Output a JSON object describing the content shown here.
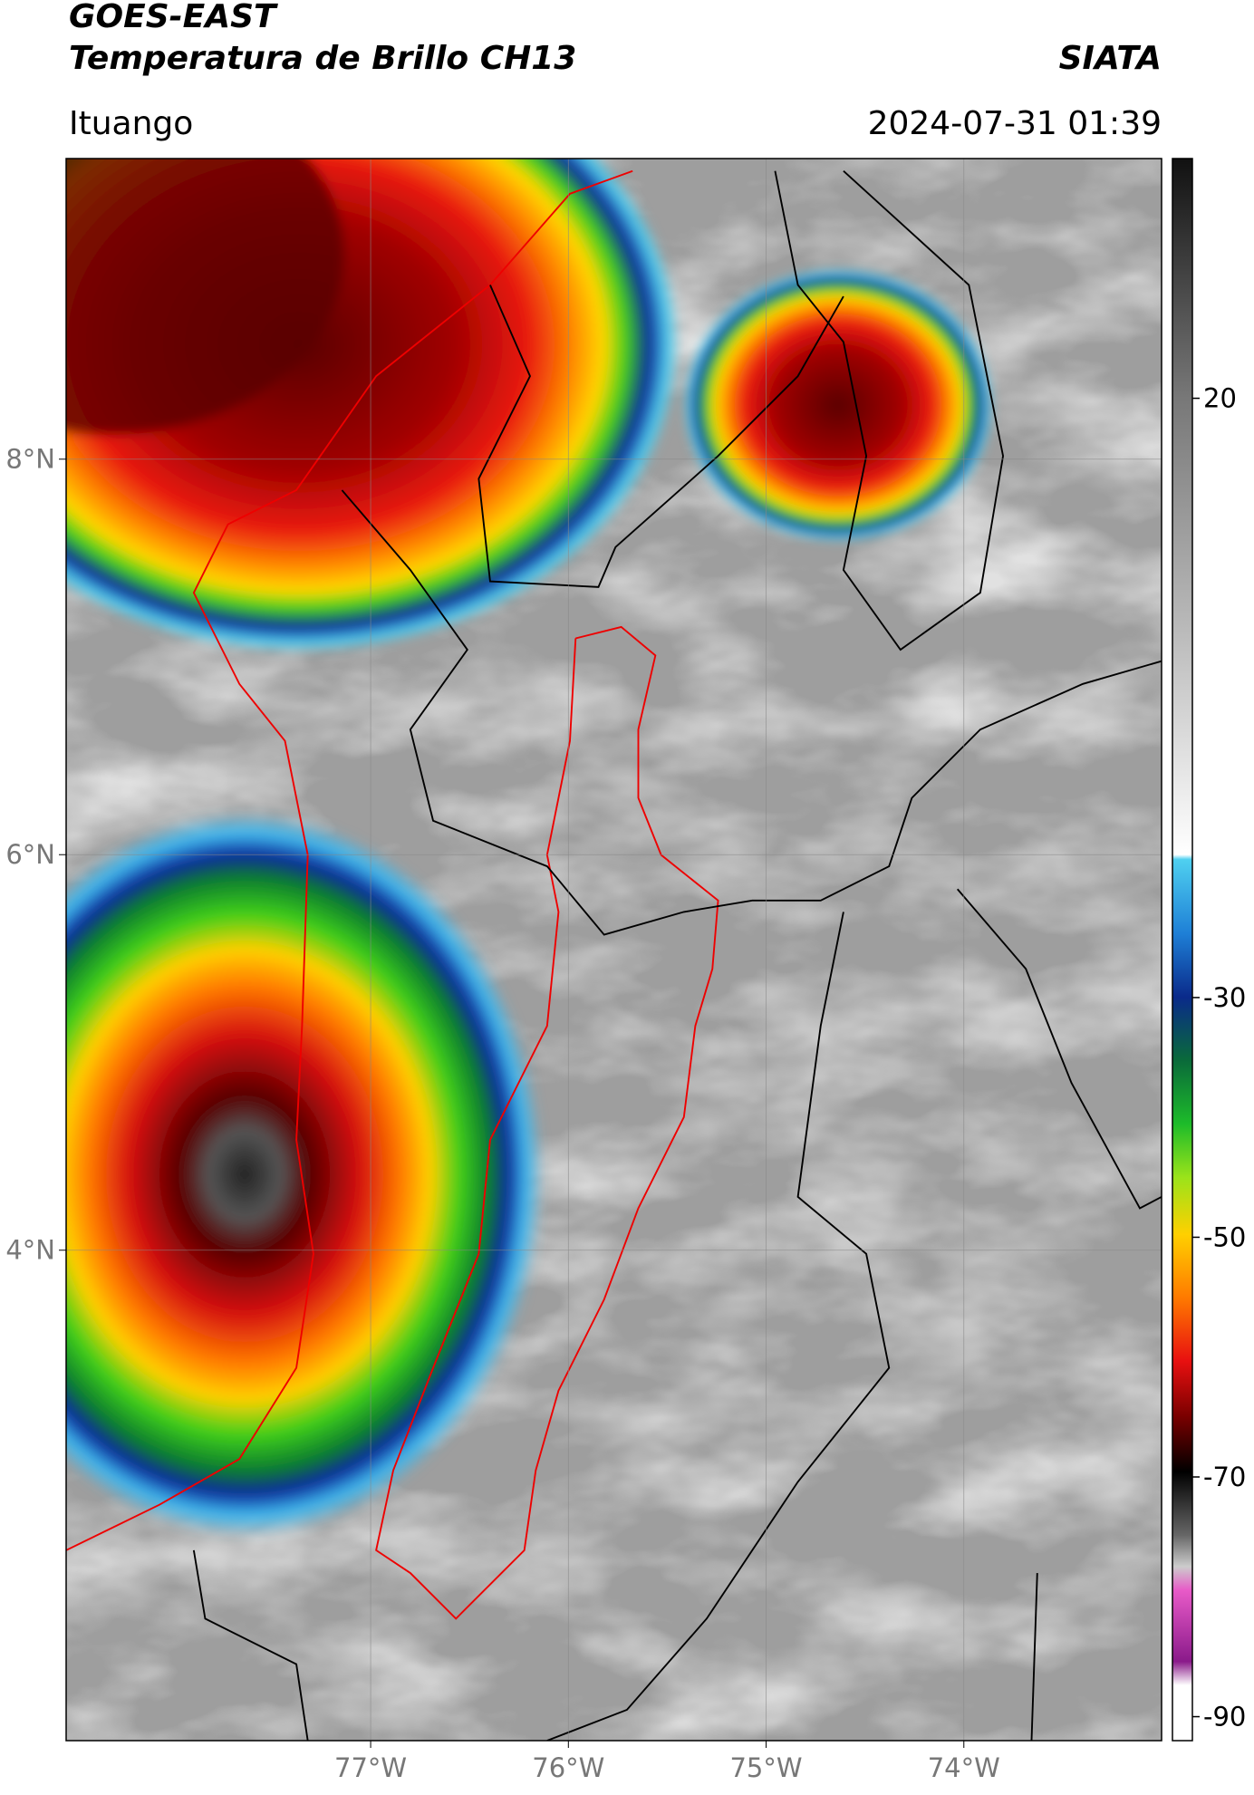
{
  "header": {
    "title": "GOES-EAST",
    "subtitle": "Temperatura de Brillo CH13",
    "source": "SIATA",
    "location": "Ituango",
    "timestamp": "2024-07-31 01:39"
  },
  "map": {
    "lonlim": [
      -78.54,
      -73.0
    ],
    "latlim": [
      1.52,
      9.52
    ],
    "lat_ticks": [
      {
        "value": 8,
        "label": "8°N"
      },
      {
        "value": 6,
        "label": "6°N"
      },
      {
        "value": 4,
        "label": "4°N"
      }
    ],
    "lon_ticks": [
      {
        "value": -77,
        "label": "77°W"
      },
      {
        "value": -76,
        "label": "76°W"
      },
      {
        "value": -75,
        "label": "75°W"
      },
      {
        "value": -74,
        "label": "74°W"
      }
    ],
    "grid": true
  },
  "colorbar": {
    "lim": [
      40,
      -92
    ],
    "ticks": [
      20,
      -30,
      -50,
      -70,
      -90
    ]
  }
}
